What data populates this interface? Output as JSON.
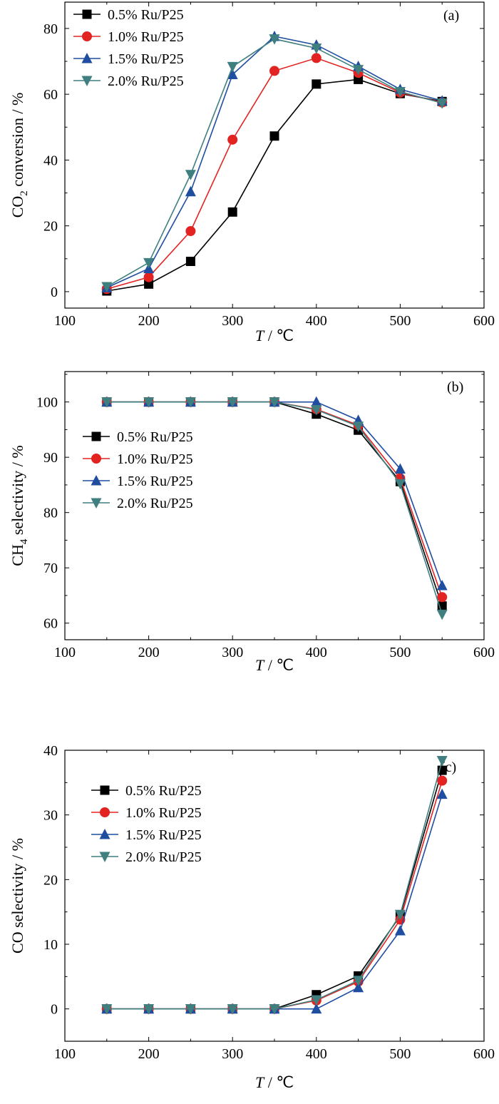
{
  "series_styles": [
    {
      "color": "#000000",
      "marker": "square"
    },
    {
      "color": "#e32322",
      "marker": "circle"
    },
    {
      "color": "#1f4ea1",
      "marker": "triangle-up"
    },
    {
      "color": "#3f7f7f",
      "marker": "triangle-down"
    }
  ],
  "chart_data": [
    {
      "type": "line",
      "panel_label": "(a)",
      "xlabel_italic": "T",
      "xlabel_rest": " / ℃",
      "ylabel_main": "CO",
      "ylabel_sub": "2",
      "ylabel_tail": " conversion / %",
      "xlim": [
        100,
        600
      ],
      "ylim": [
        -5,
        88
      ],
      "xticks": [
        100,
        200,
        300,
        400,
        500,
        600
      ],
      "yticks": [
        0,
        20,
        40,
        60,
        80
      ],
      "legend_position": "top-left",
      "x": [
        150,
        200,
        250,
        300,
        350,
        400,
        450,
        500,
        550
      ],
      "series": [
        {
          "name": "0.5% Ru/P25",
          "values": [
            0.2,
            2.3,
            9.2,
            24.2,
            47.3,
            63.1,
            64.5,
            60.2,
            57.8
          ]
        },
        {
          "name": "1.0% Ru/P25",
          "values": [
            0.8,
            4.4,
            18.4,
            46.2,
            67.1,
            71.0,
            66.5,
            60.5,
            57.5
          ]
        },
        {
          "name": "1.5% Ru/P25",
          "values": [
            1.2,
            7.0,
            30.4,
            66.0,
            77.6,
            75.0,
            68.5,
            61.5,
            58.0
          ]
        },
        {
          "name": "2.0% Ru/P25",
          "values": [
            1.5,
            8.8,
            35.6,
            68.4,
            76.8,
            74.0,
            67.5,
            60.8,
            57.3
          ]
        }
      ]
    },
    {
      "type": "line",
      "panel_label": "(b)",
      "xlabel_italic": "T",
      "xlabel_rest": " / ℃",
      "ylabel_main": "CH",
      "ylabel_sub": "4",
      "ylabel_tail": " selectivity / %",
      "xlim": [
        100,
        600
      ],
      "ylim": [
        57,
        105.5
      ],
      "xticks": [
        100,
        200,
        300,
        400,
        500,
        600
      ],
      "yticks": [
        60,
        70,
        80,
        90,
        100
      ],
      "legend_position": "left",
      "x": [
        150,
        200,
        250,
        300,
        350,
        400,
        450,
        500,
        550
      ],
      "series": [
        {
          "name": "0.5% Ru/P25",
          "values": [
            100,
            100,
            100,
            100,
            100,
            97.8,
            94.9,
            85.6,
            63.1
          ]
        },
        {
          "name": "1.0% Ru/P25",
          "values": [
            100,
            100,
            100,
            100,
            100,
            98.7,
            95.8,
            86.2,
            64.7
          ]
        },
        {
          "name": "1.5% Ru/P25",
          "values": [
            100,
            100,
            100,
            100,
            100,
            100,
            96.7,
            87.9,
            66.8
          ]
        },
        {
          "name": "2.0% Ru/P25",
          "values": [
            100,
            100,
            100,
            100,
            100,
            98.6,
            95.6,
            85.2,
            61.6
          ]
        }
      ]
    },
    {
      "type": "line",
      "panel_label": "(c)",
      "xlabel_italic": "T",
      "xlabel_rest": " / ℃",
      "ylabel_main": "CO selectivity / %",
      "ylabel_sub": "",
      "ylabel_tail": "",
      "xlim": [
        100,
        600
      ],
      "ylim": [
        -5,
        40
      ],
      "xticks": [
        100,
        200,
        300,
        400,
        500,
        600
      ],
      "yticks": [
        0,
        10,
        20,
        30,
        40
      ],
      "legend_position": "top-left",
      "x": [
        150,
        200,
        250,
        300,
        350,
        400,
        450,
        500,
        550
      ],
      "series": [
        {
          "name": "0.5% Ru/P25",
          "values": [
            0,
            0,
            0,
            0,
            0,
            2.2,
            5.1,
            14.4,
            36.9
          ]
        },
        {
          "name": "1.0% Ru/P25",
          "values": [
            0,
            0,
            0,
            0,
            0,
            1.3,
            4.2,
            13.8,
            35.3
          ]
        },
        {
          "name": "1.5% Ru/P25",
          "values": [
            0,
            0,
            0,
            0,
            0,
            0,
            3.3,
            12.1,
            33.2
          ]
        },
        {
          "name": "2.0% Ru/P25",
          "values": [
            0,
            0,
            0,
            0,
            0,
            1.4,
            4.4,
            14.6,
            38.4
          ]
        }
      ]
    }
  ]
}
